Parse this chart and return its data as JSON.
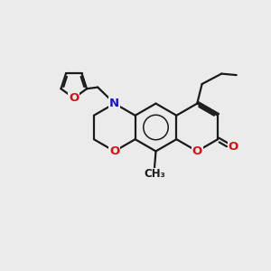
{
  "bg_color": "#ebebeb",
  "bond_color": "#1a1a1a",
  "bond_width": 1.6,
  "N_color": "#1414cc",
  "O_color": "#cc1414",
  "fig_size": [
    3.0,
    3.0
  ],
  "dpi": 100,
  "xlim": [
    0,
    10
  ],
  "ylim": [
    0,
    10
  ],
  "hex_r": 0.88,
  "furan_r": 0.5
}
